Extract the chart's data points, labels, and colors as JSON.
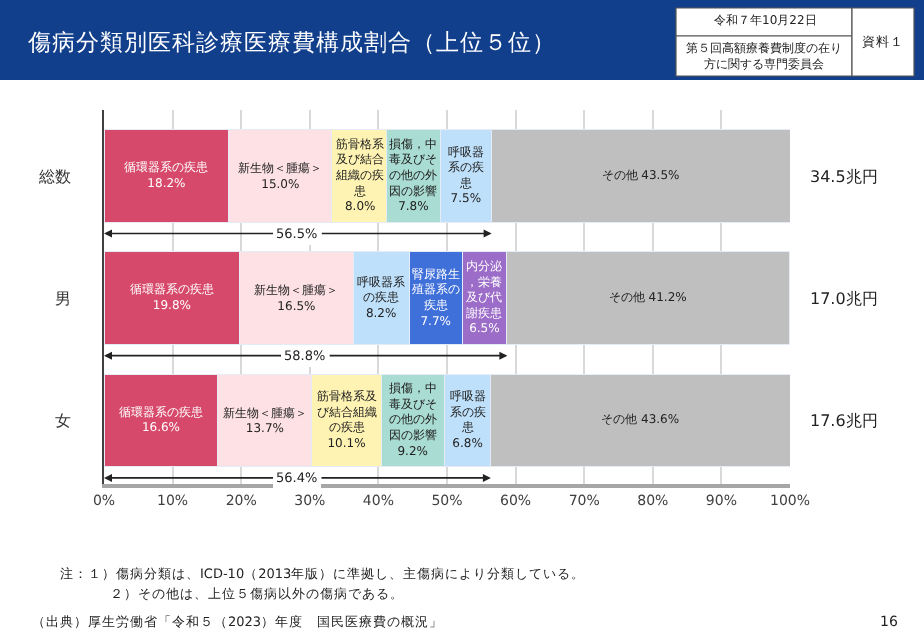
{
  "chart_data": {
    "type": "bar",
    "orientation": "horizontal",
    "stacked": true,
    "title": "傷病分類別医科診療医療費構成割合（上位５位）",
    "categories": [
      "総数",
      "男",
      "女"
    ],
    "series": [
      {
        "colors": [
          "#d6496a",
          "#d6496a",
          "#d6496a"
        ],
        "values": [
          18.2,
          19.8,
          16.6
        ],
        "value_labels": [
          "循環器系の疾患 18.2%",
          "循環器系の疾患 19.8%",
          "循環器系の疾患 16.6%"
        ]
      },
      {
        "colors": [
          "#fde1e5",
          "#fde1e5",
          "#fde1e5"
        ],
        "values": [
          15.0,
          16.5,
          13.7
        ],
        "value_labels": [
          "新生物＜腫瘍＞ 15.0%",
          "新生物＜腫瘍＞ 16.5%",
          "新生物＜腫瘍＞ 13.7%"
        ]
      },
      {
        "colors": [
          "#fff3b3",
          "#bfe0fa",
          "#fff3b3"
        ],
        "values": [
          8.0,
          8.2,
          10.1
        ],
        "value_labels": [
          "筋骨格系及び結合組織の疾患 8.0%",
          "呼吸器系の疾患 8.2%",
          "筋骨格系及び結合組織の疾患 10.1%"
        ]
      },
      {
        "colors": [
          "#a9dcd2",
          "#3f6fd8",
          "#a9dcd2"
        ],
        "values": [
          7.8,
          7.7,
          9.2
        ],
        "value_labels": [
          "損傷，中毒及びその他の外因の影響 7.8%",
          "腎尿路生殖器系の疾患 7.7%",
          "損傷，中毒及びその他の外因の影響 9.2%"
        ]
      },
      {
        "colors": [
          "#bfe0fa",
          "#9b6cc8",
          "#bfe0fa"
        ],
        "values": [
          7.5,
          6.5,
          6.8
        ],
        "value_labels": [
          "呼吸器系の疾患 7.5%",
          "内分泌，栄養及び代謝疾患 6.5%",
          "呼吸器系の疾患 6.8%"
        ]
      },
      {
        "colors": [
          "#bfbfbf",
          "#bfbfbf",
          "#bfbfbf"
        ],
        "values": [
          43.5,
          41.2,
          43.6
        ],
        "value_labels": [
          "その他 43.5%",
          "その他 41.2%",
          "その他 43.6%"
        ]
      }
    ],
    "xlim": [
      0,
      100
    ],
    "xticks": [
      {
        "value": 0,
        "label": "0%"
      },
      {
        "value": 10,
        "label": "10%"
      },
      {
        "value": 20,
        "label": "20%"
      },
      {
        "value": 30,
        "label": "30%"
      },
      {
        "value": 40,
        "label": "40%"
      },
      {
        "value": 50,
        "label": "50%"
      },
      {
        "value": 60,
        "label": "60%"
      },
      {
        "value": 70,
        "label": "70%"
      },
      {
        "value": 80,
        "label": "80%"
      },
      {
        "value": 90,
        "label": "90%"
      },
      {
        "value": 100,
        "label": "100%"
      }
    ],
    "grid": "x",
    "annotations": [
      "令和７年10月22日",
      "第５回高額療養費制度の在り方に関する専門委員会",
      "資料１",
      {
        "text": "56.5%",
        "x": 56.5
      },
      {
        "text": "58.8%",
        "x": 58.8
      },
      {
        "text": "56.4%",
        "x": 56.4
      },
      "34.5兆円",
      "17.0兆円",
      "17.6兆円",
      "注：１）傷病分類は、ICD-10（2013年版）に準拠し、主傷病により分類している。",
      "２）その他は、上位５傷病以外の傷病である。",
      "（出典）厚生労働省「令和５（2023）年度　国民医療費の概況」",
      "16"
    ]
  }
}
